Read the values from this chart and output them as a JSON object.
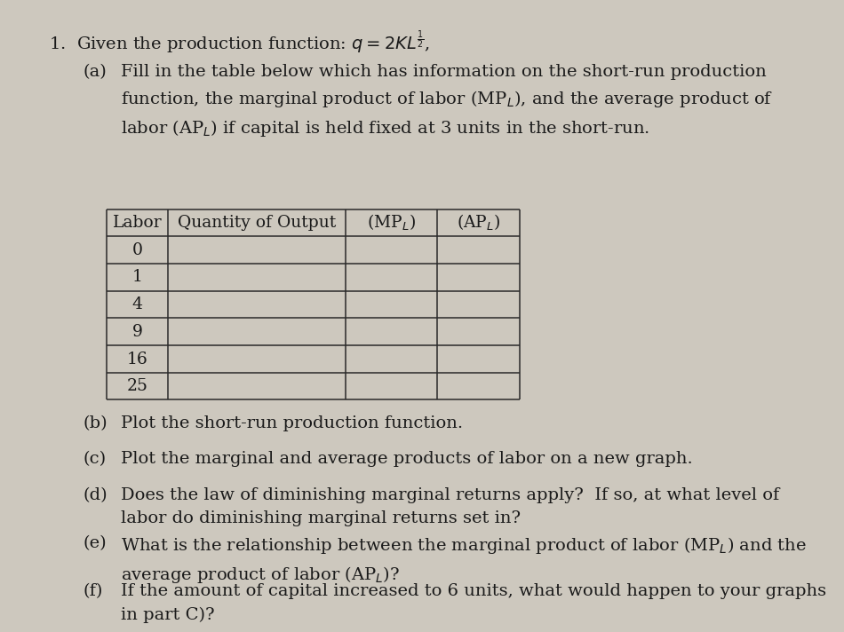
{
  "bg_color": "#cdc8be",
  "text_color": "#1a1a1a",
  "title_line": "1.  Given the production function: $q = 2KL^{\\frac{1}{2}}$,",
  "part_a_label": "(a)",
  "part_a_text": "Fill in the table below which has information on the short-run production\nfunction, the marginal product of labor (MP$_L$), and the average product of\nlabor (AP$_L$) if capital is held fixed at 3 units in the short-run.",
  "table_headers": [
    "Labor",
    "Quantity of Output",
    "(MP$_L$)",
    "(AP$_L$)"
  ],
  "table_rows": [
    "0",
    "1",
    "4",
    "9",
    "16",
    "25"
  ],
  "part_b_label": "(b)",
  "part_b_text": "Plot the short-run production function.",
  "part_c_label": "(c)",
  "part_c_text": "Plot the marginal and average products of labor on a new graph.",
  "part_d_label": "(d)",
  "part_d_text": "Does the law of diminishing marginal returns apply?  If so, at what level of\nlabor do diminishing marginal returns set in?",
  "part_e_label": "(e)",
  "part_e_text": "What is the relationship between the marginal product of labor (MP$_L$) and the\naverage product of labor (AP$_L$)?",
  "part_f_label": "(f)",
  "part_f_text": "If the amount of capital increased to 6 units, what would happen to your graphs\nin part C)?"
}
